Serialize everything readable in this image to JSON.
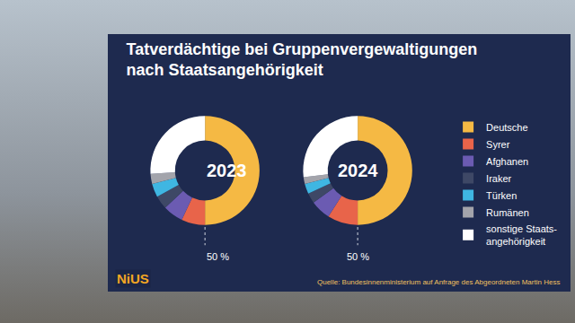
{
  "title": [
    "Tatverdächtige bei Gruppenvergewaltigungen",
    "nach Staatsangehörigkeit"
  ],
  "source": "Quelle: Bundesinnenministerium auf Anfrage des Abgeordneten Martin Hess",
  "logo": "NiUS",
  "chart_data": [
    {
      "type": "pie",
      "title": "2023",
      "categories": [
        "Deutsche",
        "Syrer",
        "Afghanen",
        "Iraker",
        "Türken",
        "Rumänen",
        "sonstige Staats-\nangehörigkeit"
      ],
      "values": [
        50,
        7,
        6,
        4,
        4,
        3,
        26
      ],
      "colors": [
        "#f5b944",
        "#e8644a",
        "#6b5bb2",
        "#3e4866",
        "#3fb6e2",
        "#a3a4ab",
        "#ffffff"
      ],
      "legend": "right",
      "annotations": [
        {
          "category": "Deutsche",
          "text": "50 %"
        }
      ]
    },
    {
      "type": "pie",
      "title": "2024",
      "categories": [
        "Deutsche",
        "Syrer",
        "Afghanen",
        "Iraker",
        "Türken",
        "Rumänen",
        "sonstige Staats-\nangehörigkeit"
      ],
      "values": [
        50,
        9,
        6,
        3,
        3,
        2,
        27
      ],
      "colors": [
        "#f5b944",
        "#e8644a",
        "#6b5bb2",
        "#3e4866",
        "#3fb6e2",
        "#a3a4ab",
        "#ffffff"
      ],
      "annotations": [
        {
          "category": "Deutsche",
          "text": "50 %"
        }
      ]
    }
  ]
}
